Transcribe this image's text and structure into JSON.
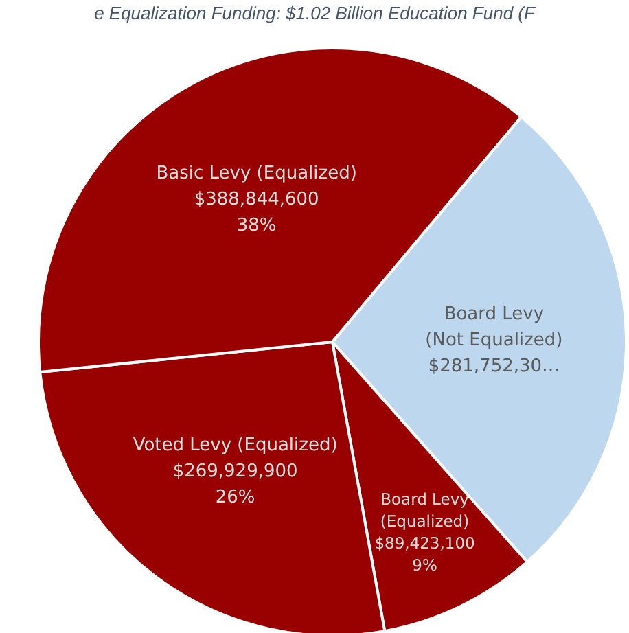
{
  "chart_data": {
    "type": "pie",
    "title": "e Equalization Funding: $1.02 Billion Education Fund (F",
    "categories": [
      "Board Levy (Not Equalized)",
      "Board Levy (Equalized)",
      "Voted Levy (Equalized)",
      "Basic Levy (Equalized)"
    ],
    "values": [
      281752300,
      89423100,
      269929900,
      388844600
    ],
    "colors": [
      "#bdd7ee",
      "#990000",
      "#990000",
      "#990000"
    ],
    "value_labels": [
      "$281,752,30…",
      "$89,423,100\n9%",
      "$269,929,900\n26%",
      "$388,844,600\n38%"
    ],
    "legend": false
  }
}
